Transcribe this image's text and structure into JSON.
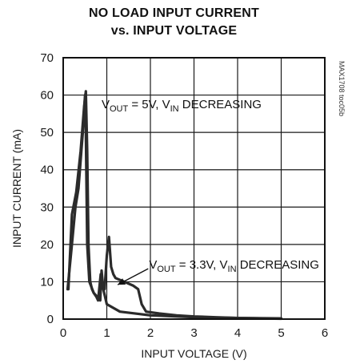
{
  "chart_data": {
    "type": "line",
    "title_line1": "NO LOAD INPUT CURRENT",
    "title_line2": "vs. INPUT VOLTAGE",
    "xlabel": "INPUT VOLTAGE (V)",
    "ylabel": "INPUT CURRENT (mA)",
    "xlim": [
      0,
      6
    ],
    "ylim": [
      0,
      70
    ],
    "xticks": [
      "0",
      "1",
      "2",
      "3",
      "4",
      "5",
      "6"
    ],
    "yticks": [
      "0",
      "10",
      "20",
      "30",
      "40",
      "50",
      "60",
      "70"
    ],
    "grid": true,
    "side_code": "MAX1708 toc05b",
    "colors": {
      "curve": "#2b2b2b",
      "grid": "#1a1a1a"
    },
    "series": [
      {
        "annotation": {
          "main": "V",
          "sub1": "OUT",
          "mid": " = 5V, V",
          "sub2": "IN",
          "end": " DECREASING"
        },
        "x": [
          0.12,
          0.2,
          0.3,
          0.4,
          0.48,
          0.52,
          0.55,
          0.58,
          0.62,
          0.66,
          0.7,
          0.78,
          0.85,
          0.88,
          0.92,
          1.0,
          1.3,
          2.0,
          3.0,
          4.0,
          5.0
        ],
        "y": [
          8.0,
          28.0,
          34.0,
          45.0,
          57.0,
          61.0,
          45.0,
          20.0,
          10.0,
          8.0,
          7.0,
          6.0,
          5.0,
          13.0,
          8.0,
          4.0,
          2.0,
          1.0,
          0.5,
          0.3,
          0.2
        ]
      },
      {
        "annotation": {
          "main": "V",
          "sub1": "OUT",
          "mid": " = 3.3V, V",
          "sub2": "IN",
          "end": " DECREASING"
        },
        "x": [
          0.1,
          0.2,
          0.28,
          0.35,
          0.45,
          0.5,
          0.52,
          0.55,
          0.6,
          0.7,
          0.76,
          0.8,
          0.86,
          0.9,
          0.95,
          1.0,
          1.05,
          1.1,
          1.15,
          1.2,
          1.4,
          1.6,
          1.72,
          1.8,
          1.9,
          2.2,
          2.6,
          3.0,
          3.5,
          4.0,
          4.5,
          5.0
        ],
        "y": [
          8.0,
          20.0,
          30.0,
          35.0,
          50.0,
          60.0,
          50.0,
          20.0,
          10.0,
          7.0,
          6.0,
          5.0,
          12.0,
          10.0,
          8.0,
          17.0,
          22.0,
          14.0,
          12.0,
          11.0,
          10.0,
          9.0,
          8.0,
          4.0,
          2.0,
          1.5,
          1.0,
          0.7,
          0.5,
          0.3,
          0.2,
          0.1
        ]
      }
    ]
  }
}
